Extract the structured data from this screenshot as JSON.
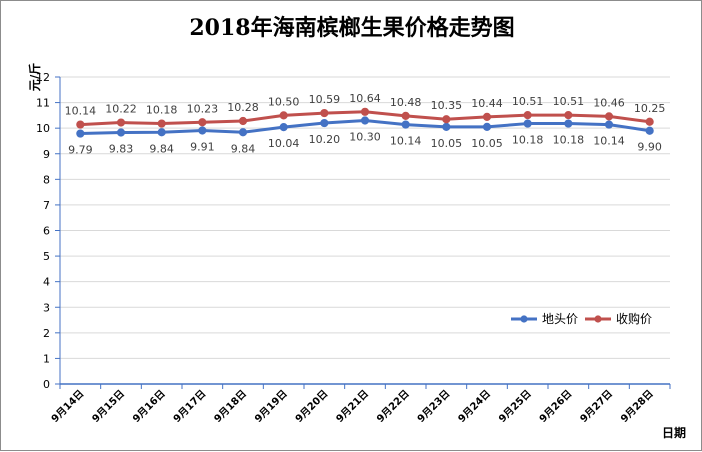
{
  "chart_data": {
    "type": "line",
    "title": "2018年海南槟榔生果价格走势图",
    "xlabel": "日期",
    "ylabel": "元/斤",
    "ylim": [
      0,
      12
    ],
    "yticks": [
      "0",
      "1",
      "2",
      "3",
      "4",
      "5",
      "6",
      "7",
      "8",
      "9",
      "10",
      "11",
      "12"
    ],
    "grid": true,
    "legend_position": "right",
    "categories": [
      "9月14日",
      "9月15日",
      "9月16日",
      "9月17日",
      "9月18日",
      "9月19日",
      "9月20日",
      "9月21日",
      "9月22日",
      "9月23日",
      "9月24日",
      "9月25日",
      "9月26日",
      "9月27日",
      "9月28日"
    ],
    "series": [
      {
        "name": "地头价",
        "color": "#4472c4",
        "values": [
          9.79,
          9.83,
          9.84,
          9.91,
          9.84,
          10.04,
          10.2,
          10.3,
          10.14,
          10.05,
          10.05,
          10.18,
          10.18,
          10.14,
          9.9
        ],
        "labels": [
          "9.79",
          "9.83",
          "9.84",
          "9.91",
          "9.84",
          "10.04",
          "10.20",
          "10.30",
          "10.14",
          "10.05",
          "10.05",
          "10.18",
          "10.18",
          "10.14",
          "9.90"
        ]
      },
      {
        "name": "收购价",
        "color": "#c0504d",
        "values": [
          10.14,
          10.22,
          10.18,
          10.23,
          10.28,
          10.5,
          10.59,
          10.64,
          10.48,
          10.35,
          10.44,
          10.51,
          10.51,
          10.46,
          10.25
        ],
        "labels": [
          "10.14",
          "10.22",
          "10.18",
          "10.23",
          "10.28",
          "10.50",
          "10.59",
          "10.64",
          "10.48",
          "10.35",
          "10.44",
          "10.51",
          "10.51",
          "10.46",
          "10.25"
        ]
      }
    ]
  }
}
